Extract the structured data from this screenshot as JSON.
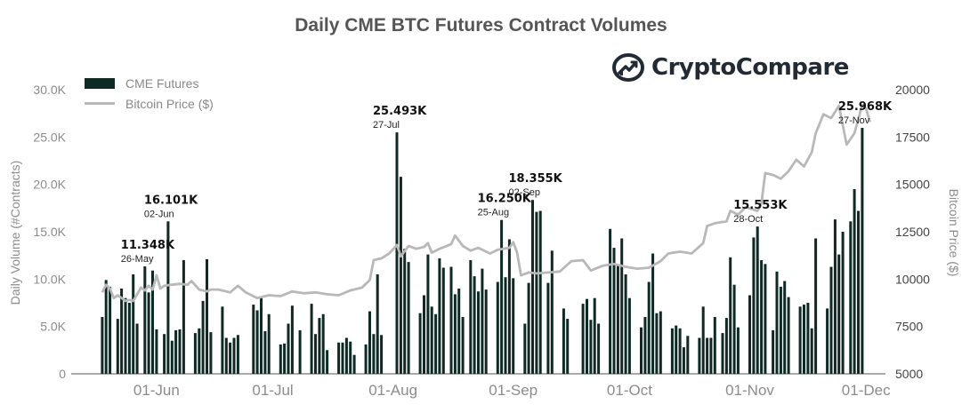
{
  "title": "Daily CME BTC Futures Contract Volumes",
  "brand": {
    "name": "CryptoCompare",
    "icon": "cryptocompare-logo-icon"
  },
  "colors": {
    "bar": "#0f2a24",
    "line": "#b8b8b8",
    "axis_text": "#8c8c8c",
    "title": "#555555"
  },
  "chart_data": {
    "type": "bar",
    "title": "Daily CME BTC Futures Contract Volumes",
    "xlabel": "",
    "ylabel": "Daily Volume (#Contracts)",
    "y2label": "Bitcoin Price ($)",
    "ylim": [
      0,
      30000
    ],
    "y2lim": [
      5000,
      20000
    ],
    "yticks": [
      "0",
      "5.0K",
      "10.0K",
      "15.0K",
      "20.0K",
      "25.0K",
      "30.0K"
    ],
    "y2ticks": [
      "5000",
      "7500",
      "10000",
      "12500",
      "15000",
      "17500",
      "20000"
    ],
    "xticks": [
      "01-Jun",
      "01-Jul",
      "01-Aug",
      "01-Sep",
      "01-Oct",
      "01-Nov",
      "01-Dec"
    ],
    "legend_position": "top-left",
    "grid": false,
    "series": [
      {
        "name": "CME Futures",
        "type": "bar",
        "points": [
          [
            "2020-05-18",
            6000
          ],
          [
            "2020-05-19",
            9900
          ],
          [
            "2020-05-20",
            9200
          ],
          [
            "2020-05-22",
            5800
          ],
          [
            "2020-05-23",
            9000
          ],
          [
            "2020-05-24",
            8000
          ],
          [
            "2020-05-25",
            7500
          ],
          [
            "2020-05-26",
            10500
          ],
          [
            "2020-05-27",
            5300
          ],
          [
            "2020-05-29",
            11348
          ],
          [
            "2020-05-30",
            8600
          ],
          [
            "2020-05-31",
            10900
          ],
          [
            "2020-06-01",
            4700
          ],
          [
            "2020-06-03",
            4200
          ],
          [
            "2020-06-04",
            16101
          ],
          [
            "2020-06-05",
            3500
          ],
          [
            "2020-06-06",
            4600
          ],
          [
            "2020-06-07",
            4700
          ],
          [
            "2020-06-08",
            12000
          ],
          [
            "2020-06-11",
            4300
          ],
          [
            "2020-06-12",
            4800
          ],
          [
            "2020-06-13",
            7700
          ],
          [
            "2020-06-14",
            12100
          ],
          [
            "2020-06-15",
            4400
          ],
          [
            "2020-06-18",
            7100
          ],
          [
            "2020-06-19",
            3800
          ],
          [
            "2020-06-20",
            3300
          ],
          [
            "2020-06-21",
            3800
          ],
          [
            "2020-06-22",
            4100
          ],
          [
            "2020-06-26",
            7300
          ],
          [
            "2020-06-27",
            6700
          ],
          [
            "2020-06-28",
            8000
          ],
          [
            "2020-06-29",
            4500
          ],
          [
            "2020-06-30",
            6300
          ],
          [
            "2020-07-03",
            3100
          ],
          [
            "2020-07-04",
            3200
          ],
          [
            "2020-07-05",
            5300
          ],
          [
            "2020-07-06",
            7200
          ],
          [
            "2020-07-08",
            4600
          ],
          [
            "2020-07-11",
            7400
          ],
          [
            "2020-07-12",
            4200
          ],
          [
            "2020-07-13",
            5900
          ],
          [
            "2020-07-14",
            6300
          ],
          [
            "2020-07-15",
            2500
          ],
          [
            "2020-07-18",
            3300
          ],
          [
            "2020-07-19",
            3300
          ],
          [
            "2020-07-20",
            3800
          ],
          [
            "2020-07-21",
            3400
          ],
          [
            "2020-07-22",
            2000
          ],
          [
            "2020-07-25",
            3100
          ],
          [
            "2020-07-26",
            6600
          ],
          [
            "2020-07-27",
            4200
          ],
          [
            "2020-07-28",
            10500
          ],
          [
            "2020-07-29",
            4100
          ],
          [
            "2020-08-02",
            25493
          ],
          [
            "2020-08-03",
            20800
          ],
          [
            "2020-08-04",
            13200
          ],
          [
            "2020-08-05",
            11800
          ],
          [
            "2020-08-08",
            6400
          ],
          [
            "2020-08-09",
            8300
          ],
          [
            "2020-08-10",
            12600
          ],
          [
            "2020-08-11",
            7100
          ],
          [
            "2020-08-12",
            6300
          ],
          [
            "2020-08-13",
            12200
          ],
          [
            "2020-08-14",
            11200
          ],
          [
            "2020-08-16",
            11300
          ],
          [
            "2020-08-17",
            8400
          ],
          [
            "2020-08-18",
            9000
          ],
          [
            "2020-08-19",
            6000
          ],
          [
            "2020-08-21",
            12000
          ],
          [
            "2020-08-22",
            10300
          ],
          [
            "2020-08-23",
            8700
          ],
          [
            "2020-08-24",
            11100
          ],
          [
            "2020-08-25",
            8900
          ],
          [
            "2020-08-28",
            9700
          ],
          [
            "2020-08-29",
            16250
          ],
          [
            "2020-08-30",
            10200
          ],
          [
            "2020-08-31",
            14200
          ],
          [
            "2020-09-01",
            10100
          ],
          [
            "2020-09-04",
            5300
          ],
          [
            "2020-09-05",
            9600
          ],
          [
            "2020-09-06",
            18355
          ],
          [
            "2020-09-07",
            17100
          ],
          [
            "2020-09-08",
            17200
          ],
          [
            "2020-09-10",
            9600
          ],
          [
            "2020-09-11",
            13000
          ],
          [
            "2020-09-14",
            6900
          ],
          [
            "2020-09-15",
            5800
          ],
          [
            "2020-09-19",
            7400
          ],
          [
            "2020-09-20",
            7900
          ],
          [
            "2020-09-21",
            5700
          ],
          [
            "2020-09-22",
            8000
          ],
          [
            "2020-09-23",
            5300
          ],
          [
            "2020-09-26",
            15300
          ],
          [
            "2020-09-27",
            13300
          ],
          [
            "2020-09-28",
            11400
          ],
          [
            "2020-09-29",
            14300
          ],
          [
            "2020-09-30",
            10500
          ],
          [
            "2020-10-01",
            8000
          ],
          [
            "2020-10-04",
            4900
          ],
          [
            "2020-10-05",
            6000
          ],
          [
            "2020-10-06",
            9700
          ],
          [
            "2020-10-07",
            12700
          ],
          [
            "2020-10-08",
            6400
          ],
          [
            "2020-10-09",
            6600
          ],
          [
            "2020-10-12",
            4800
          ],
          [
            "2020-10-13",
            5100
          ],
          [
            "2020-10-14",
            4800
          ],
          [
            "2020-10-15",
            2800
          ],
          [
            "2020-10-16",
            4000
          ],
          [
            "2020-10-19",
            3800
          ],
          [
            "2020-10-20",
            7100
          ],
          [
            "2020-10-21",
            3800
          ],
          [
            "2020-10-22",
            3800
          ],
          [
            "2020-10-23",
            6000
          ],
          [
            "2020-10-25",
            4300
          ],
          [
            "2020-10-26",
            5900
          ],
          [
            "2020-10-27",
            12300
          ],
          [
            "2020-10-28",
            9400
          ],
          [
            "2020-10-29",
            4900
          ],
          [
            "2020-11-01",
            8300
          ],
          [
            "2020-11-02",
            14400
          ],
          [
            "2020-11-03",
            15553
          ],
          [
            "2020-11-04",
            12000
          ],
          [
            "2020-11-05",
            11600
          ],
          [
            "2020-11-07",
            4600
          ],
          [
            "2020-11-08",
            10800
          ],
          [
            "2020-11-09",
            9200
          ],
          [
            "2020-11-10",
            9800
          ],
          [
            "2020-11-11",
            8100
          ],
          [
            "2020-11-14",
            7100
          ],
          [
            "2020-11-15",
            7300
          ],
          [
            "2020-11-16",
            7500
          ],
          [
            "2020-11-17",
            4800
          ],
          [
            "2020-11-18",
            14300
          ],
          [
            "2020-11-21",
            6900
          ],
          [
            "2020-11-22",
            11300
          ],
          [
            "2020-11-23",
            16300
          ],
          [
            "2020-11-24",
            12600
          ],
          [
            "2020-11-25",
            15000
          ],
          [
            "2020-11-27",
            16100
          ],
          [
            "2020-11-28",
            19500
          ],
          [
            "2020-11-29",
            17200
          ],
          [
            "2020-11-30",
            25968
          ]
        ]
      },
      {
        "name": "Bitcoin Price ($)",
        "type": "line",
        "axis": "right",
        "points": [
          [
            "2020-05-18",
            9300
          ],
          [
            "2020-05-19",
            9700
          ],
          [
            "2020-05-20",
            9500
          ],
          [
            "2020-05-21",
            9000
          ],
          [
            "2020-05-22",
            9150
          ],
          [
            "2020-05-24",
            8850
          ],
          [
            "2020-05-25",
            8900
          ],
          [
            "2020-05-26",
            8850
          ],
          [
            "2020-05-27",
            9200
          ],
          [
            "2020-05-28",
            9550
          ],
          [
            "2020-05-29",
            9400
          ],
          [
            "2020-05-30",
            9650
          ],
          [
            "2020-05-31",
            9450
          ],
          [
            "2020-06-01",
            10200
          ],
          [
            "2020-06-02",
            9500
          ],
          [
            "2020-06-03",
            9650
          ],
          [
            "2020-06-05",
            9700
          ],
          [
            "2020-06-07",
            9750
          ],
          [
            "2020-06-09",
            9700
          ],
          [
            "2020-06-10",
            9900
          ],
          [
            "2020-06-12",
            9450
          ],
          [
            "2020-06-14",
            9350
          ],
          [
            "2020-06-15",
            9450
          ],
          [
            "2020-06-17",
            9450
          ],
          [
            "2020-06-20",
            9300
          ],
          [
            "2020-06-22",
            9650
          ],
          [
            "2020-06-24",
            9300
          ],
          [
            "2020-06-27",
            9000
          ],
          [
            "2020-06-30",
            9150
          ],
          [
            "2020-07-03",
            9100
          ],
          [
            "2020-07-06",
            9350
          ],
          [
            "2020-07-09",
            9250
          ],
          [
            "2020-07-12",
            9300
          ],
          [
            "2020-07-15",
            9200
          ],
          [
            "2020-07-18",
            9150
          ],
          [
            "2020-07-21",
            9400
          ],
          [
            "2020-07-24",
            9550
          ],
          [
            "2020-07-26",
            9950
          ],
          [
            "2020-07-27",
            11000
          ],
          [
            "2020-07-29",
            11100
          ],
          [
            "2020-07-31",
            11350
          ],
          [
            "2020-08-02",
            11800
          ],
          [
            "2020-08-03",
            11200
          ],
          [
            "2020-08-05",
            11750
          ],
          [
            "2020-08-07",
            11600
          ],
          [
            "2020-08-09",
            11700
          ],
          [
            "2020-08-10",
            11900
          ],
          [
            "2020-08-11",
            11400
          ],
          [
            "2020-08-13",
            11600
          ],
          [
            "2020-08-16",
            11850
          ],
          [
            "2020-08-17",
            12300
          ],
          [
            "2020-08-19",
            11750
          ],
          [
            "2020-08-21",
            11500
          ],
          [
            "2020-08-23",
            11650
          ],
          [
            "2020-08-26",
            11350
          ],
          [
            "2020-08-28",
            11550
          ],
          [
            "2020-08-31",
            11650
          ],
          [
            "2020-09-01",
            11950
          ],
          [
            "2020-09-02",
            11400
          ],
          [
            "2020-09-03",
            10200
          ],
          [
            "2020-09-05",
            10350
          ],
          [
            "2020-09-07",
            10300
          ],
          [
            "2020-09-10",
            10350
          ],
          [
            "2020-09-13",
            10400
          ],
          [
            "2020-09-16",
            10950
          ],
          [
            "2020-09-19",
            11000
          ],
          [
            "2020-09-21",
            10450
          ],
          [
            "2020-09-24",
            10700
          ],
          [
            "2020-09-27",
            10800
          ],
          [
            "2020-09-30",
            10650
          ],
          [
            "2020-10-03",
            10550
          ],
          [
            "2020-10-06",
            10600
          ],
          [
            "2020-10-09",
            10950
          ],
          [
            "2020-10-11",
            11350
          ],
          [
            "2020-10-14",
            11450
          ],
          [
            "2020-10-17",
            11350
          ],
          [
            "2020-10-20",
            11900
          ],
          [
            "2020-10-21",
            12800
          ],
          [
            "2020-10-23",
            12950
          ],
          [
            "2020-10-26",
            13050
          ],
          [
            "2020-10-27",
            13600
          ],
          [
            "2020-10-29",
            13400
          ],
          [
            "2020-10-31",
            13800
          ],
          [
            "2020-11-03",
            13600
          ],
          [
            "2020-11-04",
            14000
          ],
          [
            "2020-11-05",
            15600
          ],
          [
            "2020-11-07",
            15500
          ],
          [
            "2020-11-09",
            15300
          ],
          [
            "2020-11-11",
            15700
          ],
          [
            "2020-11-13",
            16300
          ],
          [
            "2020-11-15",
            15950
          ],
          [
            "2020-11-17",
            16700
          ],
          [
            "2020-11-18",
            17700
          ],
          [
            "2020-11-20",
            18700
          ],
          [
            "2020-11-22",
            18500
          ],
          [
            "2020-11-24",
            19150
          ],
          [
            "2020-11-26",
            17100
          ],
          [
            "2020-11-28",
            17700
          ],
          [
            "2020-11-30",
            19200
          ],
          [
            "2020-12-01",
            19000
          ],
          [
            "2020-12-02",
            18300
          ]
        ]
      }
    ],
    "annotations": [
      {
        "value": "11.348K",
        "date": "26-May",
        "x": "2020-05-29",
        "y": 11348
      },
      {
        "value": "16.101K",
        "date": "02-Jun",
        "x": "2020-06-04",
        "y": 16101
      },
      {
        "value": "25.493K",
        "date": "27-Jul",
        "x": "2020-08-02",
        "y": 25493
      },
      {
        "value": "16.250K",
        "date": "25-Aug",
        "x": "2020-08-29",
        "y": 16250
      },
      {
        "value": "18.355K",
        "date": "02-Sep",
        "x": "2020-09-06",
        "y": 18355
      },
      {
        "value": "15.553K",
        "date": "28-Oct",
        "x": "2020-11-03",
        "y": 15553
      },
      {
        "value": "25.968K",
        "date": "27-Nov",
        "x": "2020-11-30",
        "y": 25968
      }
    ]
  }
}
